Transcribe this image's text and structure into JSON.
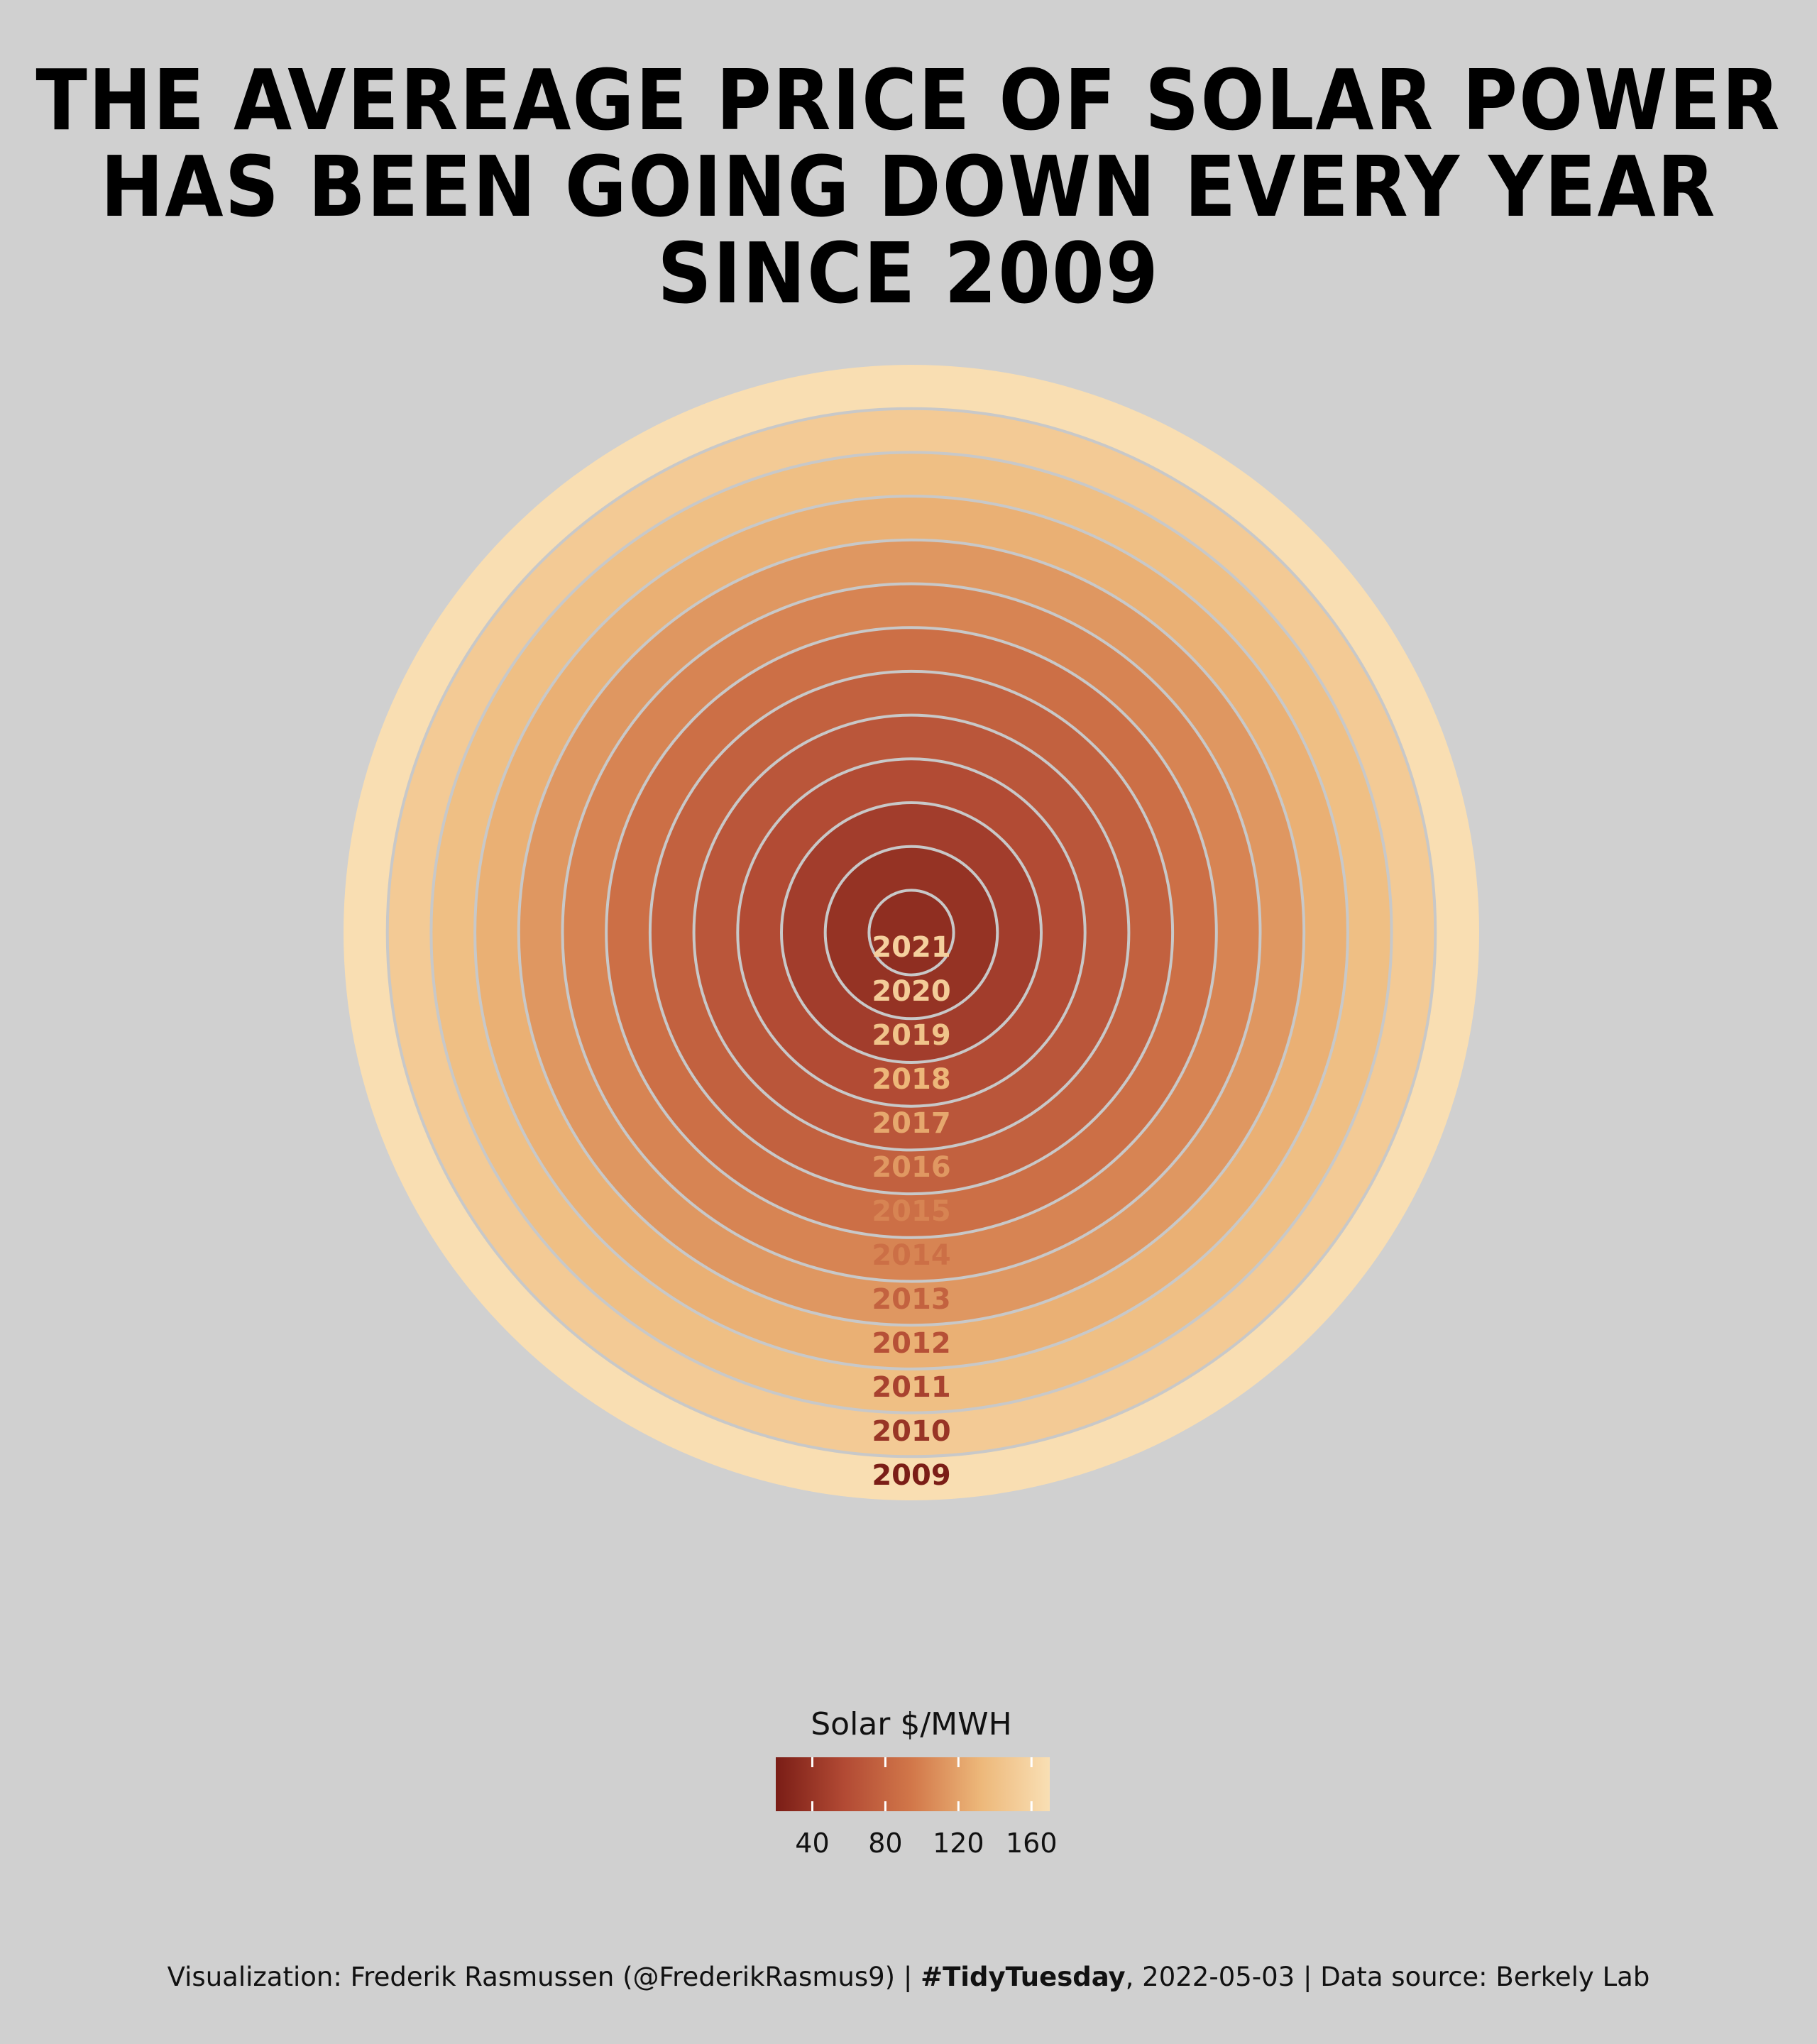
{
  "chart_data": {
    "type": "concentric-rings",
    "title_lines": [
      "THE AVEREAGE PRICE OF SOLAR POWER",
      "HAS BEEN GOING DOWN EVERY YEAR SINCE 2009"
    ],
    "categories": [
      "2009",
      "2010",
      "2011",
      "2012",
      "2013",
      "2014",
      "2015",
      "2016",
      "2017",
      "2018",
      "2019",
      "2020",
      "2021"
    ],
    "series": [
      {
        "values": [
          169,
          150,
          139,
          128,
          113,
          102,
          88,
          76,
          67,
          58,
          47,
          38,
          34
        ]
      }
    ],
    "legend": {
      "title": "Solar $/MWH",
      "ticks": [
        40,
        80,
        120,
        160
      ],
      "tick_labels": [
        "40",
        "80",
        "120",
        "160"
      ],
      "range": [
        20,
        170
      ],
      "placement": "bottom"
    },
    "colors": {
      "low": "#7a1d16",
      "mid_low": "#b24a34",
      "mid": "#d2784a",
      "mid_high": "#edb87a",
      "high": "#f9dfb4",
      "ring_outline": "#c8c8c8"
    }
  },
  "caption": {
    "part1": "Visualization: Frederik Rasmussen (@FrederikRasmus9) | ",
    "bold": "#TidyTuesday",
    "part2": ", 2022-05-03 | Data source: Berkely Lab"
  }
}
